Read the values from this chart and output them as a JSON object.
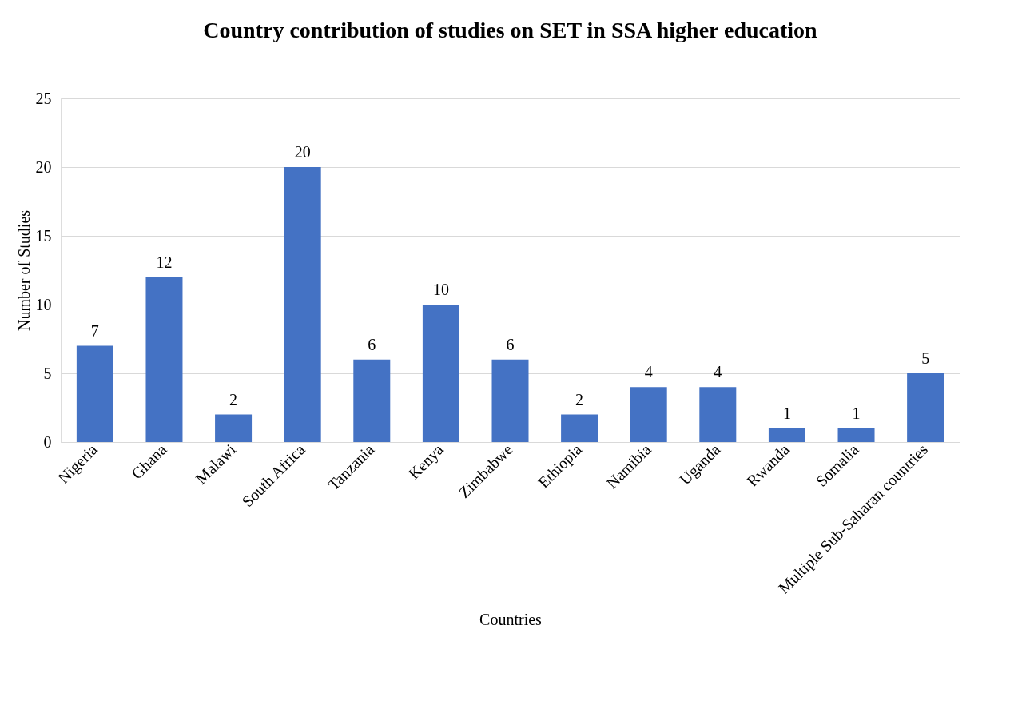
{
  "chart_data": {
    "type": "bar",
    "title": "Country contribution of studies on SET in SSA higher education",
    "xlabel": "Countries",
    "ylabel": "Number of Studies",
    "categories": [
      "Nigeria",
      "Ghana",
      "Malawi",
      "South Africa",
      "Tanzania",
      "Kenya",
      "Zimbabwe",
      "Ethiopia",
      "Namibia",
      "Uganda",
      "Rwanda",
      "Somalia",
      "Multiple Sub-Saharan countries"
    ],
    "values": [
      7,
      12,
      2,
      20,
      6,
      10,
      6,
      2,
      4,
      4,
      1,
      1,
      5
    ],
    "color": "#4472c4",
    "ylim": [
      0,
      25
    ],
    "yticks": [
      0,
      5,
      10,
      15,
      20,
      25
    ],
    "grid": "y",
    "data_labels": true
  }
}
